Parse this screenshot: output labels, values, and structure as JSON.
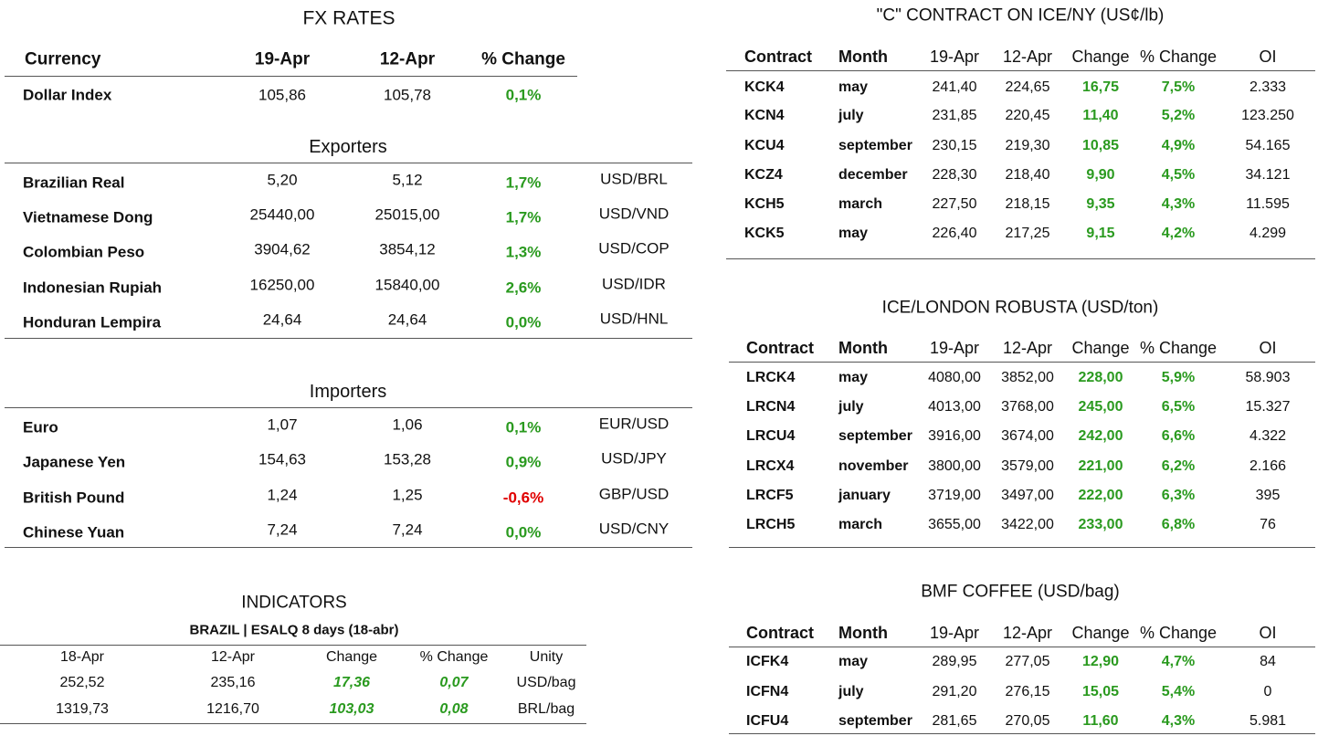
{
  "fx": {
    "title": "FX RATES",
    "headers": [
      "Currency",
      "19-Apr",
      "12-Apr",
      "% Change"
    ],
    "dollar_index": [
      "Dollar Index",
      "105,86",
      "105,78",
      "0,1%"
    ],
    "exporters": {
      "title": "Exporters",
      "rows": [
        [
          "Brazilian Real",
          "5,20",
          "5,12",
          "1,7%",
          "USD/BRL"
        ],
        [
          "Vietnamese Dong",
          "25440,00",
          "25015,00",
          "1,7%",
          "USD/VND"
        ],
        [
          "Colombian Peso",
          "3904,62",
          "3854,12",
          "1,3%",
          "USD/COP"
        ],
        [
          "Indonesian Rupiah",
          "16250,00",
          "15840,00",
          "2,6%",
          "USD/IDR"
        ],
        [
          "Honduran Lempira",
          "24,64",
          "24,64",
          "0,0%",
          "USD/HNL"
        ]
      ]
    },
    "importers": {
      "title": "Importers",
      "rows": [
        [
          "Euro",
          "1,07",
          "1,06",
          "0,1%",
          "EUR/USD"
        ],
        [
          "Japanese Yen",
          "154,63",
          "153,28",
          "0,9%",
          "USD/JPY"
        ],
        [
          "British Pound",
          "1,24",
          "1,25",
          "-0,6%",
          "GBP/USD"
        ],
        [
          "Chinese Yuan",
          "7,24",
          "7,24",
          "0,0%",
          "USD/CNY"
        ]
      ]
    }
  },
  "indicators": {
    "title": "INDICATORS",
    "subtitle": "BRAZIL | ESALQ 8 days (18-abr)",
    "headers": [
      "18-Apr",
      "12-Apr",
      "Change",
      "% Change",
      "Unity"
    ],
    "rows": [
      [
        "252,52",
        "235,16",
        "17,36",
        "0,07",
        "USD/bag"
      ],
      [
        "1319,73",
        "1216,70",
        "103,03",
        "0,08",
        "BRL/bag"
      ]
    ]
  },
  "contracts": [
    {
      "title": "\"C\" CONTRACT ON ICE/NY (US¢/lb)",
      "headers": [
        "Contract",
        "Month",
        "19-Apr",
        "12-Apr",
        "Change",
        "% Change",
        "OI"
      ],
      "rows": [
        [
          "KCK4",
          "may",
          "241,40",
          "224,65",
          "16,75",
          "7,5%",
          "2.333"
        ],
        [
          "KCN4",
          "july",
          "231,85",
          "220,45",
          "11,40",
          "5,2%",
          "123.250"
        ],
        [
          "KCU4",
          "september",
          "230,15",
          "219,30",
          "10,85",
          "4,9%",
          "54.165"
        ],
        [
          "KCZ4",
          "december",
          "228,30",
          "218,40",
          "9,90",
          "4,5%",
          "34.121"
        ],
        [
          "KCH5",
          "march",
          "227,50",
          "218,15",
          "9,35",
          "4,3%",
          "11.595"
        ],
        [
          "KCK5",
          "may",
          "226,40",
          "217,25",
          "9,15",
          "4,2%",
          "4.299"
        ]
      ]
    },
    {
      "title": "ICE/LONDON ROBUSTA (USD/ton)",
      "headers": [
        "Contract",
        "Month",
        "19-Apr",
        "12-Apr",
        "Change",
        "% Change",
        "OI"
      ],
      "rows": [
        [
          "LRCK4",
          "may",
          "4080,00",
          "3852,00",
          "228,00",
          "5,9%",
          "58.903"
        ],
        [
          "LRCN4",
          "july",
          "4013,00",
          "3768,00",
          "245,00",
          "6,5%",
          "15.327"
        ],
        [
          "LRCU4",
          "september",
          "3916,00",
          "3674,00",
          "242,00",
          "6,6%",
          "4.322"
        ],
        [
          "LRCX4",
          "november",
          "3800,00",
          "3579,00",
          "221,00",
          "6,2%",
          "2.166"
        ],
        [
          "LRCF5",
          "january",
          "3719,00",
          "3497,00",
          "222,00",
          "6,3%",
          "395"
        ],
        [
          "LRCH5",
          "march",
          "3655,00",
          "3422,00",
          "233,00",
          "6,8%",
          "76"
        ]
      ]
    },
    {
      "title": "BMF COFFEE (USD/bag)",
      "headers": [
        "Contract",
        "Month",
        "19-Apr",
        "12-Apr",
        "Change",
        "% Change",
        "OI"
      ],
      "rows": [
        [
          "ICFK4",
          "may",
          "289,95",
          "277,05",
          "12,90",
          "4,7%",
          "84"
        ],
        [
          "ICFN4",
          "july",
          "291,20",
          "276,15",
          "15,05",
          "5,4%",
          "0"
        ],
        [
          "ICFU4",
          "september",
          "281,65",
          "270,05",
          "11,60",
          "4,3%",
          "5.981"
        ]
      ]
    }
  ]
}
